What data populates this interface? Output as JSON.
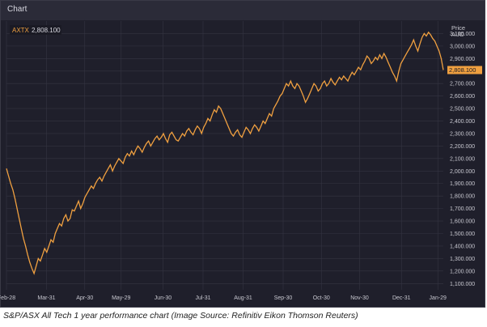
{
  "window": {
    "title": "Chart"
  },
  "legend": {
    "ticker": "AXTX",
    "value": "2,808.100"
  },
  "price_axis": {
    "label_line1": "Price",
    "label_line2": "AUD",
    "current_label": "2,808.100"
  },
  "caption": "S&P/ASX All Tech 1 year performance chart (Image Source: Refinitiv Eikon Thomson Reuters)",
  "colors": {
    "series": "#f0a040",
    "background": "#1f1f2b",
    "grid": "#343442",
    "text": "#c8c8d0"
  },
  "chart_data": {
    "type": "line",
    "title": "",
    "xlabel": "",
    "ylabel": "Price AUD",
    "ylim": [
      1050,
      3200
    ],
    "grid": true,
    "legend": "top-left",
    "x_ticks": [
      {
        "label": "Feb-28",
        "pos": 0.0
      },
      {
        "label": "Mar-31",
        "pos": 22.0
      },
      {
        "label": "Apr-30",
        "pos": 43.0
      },
      {
        "label": "May-29",
        "pos": 63.0
      },
      {
        "label": "Jun-30",
        "pos": 86.0
      },
      {
        "label": "Jul-31",
        "pos": 108.0
      },
      {
        "label": "Aug-31",
        "pos": 130.0
      },
      {
        "label": "Sep-30",
        "pos": 152.0
      },
      {
        "label": "Oct-30",
        "pos": 173.0
      },
      {
        "label": "Nov-30",
        "pos": 194.0
      },
      {
        "label": "Dec-31",
        "pos": 217.0
      },
      {
        "label": "Jan-29",
        "pos": 237.0
      }
    ],
    "y_ticks": [
      1100,
      1200,
      1300,
      1400,
      1500,
      1600,
      1700,
      1800,
      1900,
      2000,
      2100,
      2200,
      2300,
      2400,
      2500,
      2600,
      2700,
      2800,
      2900,
      3000,
      3100
    ],
    "y_tick_labels": [
      "1,100.000",
      "1,200.000",
      "1,300.000",
      "1,400.000",
      "1,500.000",
      "1,600.000",
      "1,700.000",
      "1,800.000",
      "1,900.000",
      "2,000.000",
      "2,100.000",
      "2,200.000",
      "2,300.000",
      "2,400.000",
      "2,500.000",
      "2,600.000",
      "2,700.000",
      "2,800.000",
      "2,900.000",
      "3,000.000",
      "3,100.000"
    ],
    "series": [
      {
        "values": [
          2020,
          1960,
          1900,
          1850,
          1780,
          1700,
          1620,
          1540,
          1460,
          1400,
          1330,
          1270,
          1220,
          1180,
          1240,
          1300,
          1280,
          1330,
          1380,
          1350,
          1400,
          1450,
          1430,
          1500,
          1540,
          1580,
          1560,
          1620,
          1650,
          1600,
          1620,
          1690,
          1680,
          1720,
          1760,
          1700,
          1740,
          1790,
          1820,
          1850,
          1880,
          1860,
          1900,
          1930,
          1950,
          1920,
          1960,
          1990,
          2020,
          2050,
          2000,
          2040,
          2070,
          2100,
          2080,
          2060,
          2110,
          2140,
          2120,
          2160,
          2130,
          2170,
          2200,
          2180,
          2150,
          2190,
          2220,
          2240,
          2200,
          2230,
          2260,
          2280,
          2250,
          2270,
          2300,
          2260,
          2230,
          2290,
          2310,
          2280,
          2250,
          2240,
          2270,
          2300,
          2280,
          2320,
          2340,
          2310,
          2290,
          2330,
          2360,
          2340,
          2300,
          2350,
          2380,
          2420,
          2400,
          2450,
          2490,
          2470,
          2520,
          2500,
          2460,
          2420,
          2380,
          2340,
          2300,
          2280,
          2310,
          2330,
          2290,
          2270,
          2310,
          2350,
          2330,
          2300,
          2340,
          2370,
          2350,
          2320,
          2360,
          2400,
          2380,
          2420,
          2460,
          2440,
          2500,
          2530,
          2560,
          2600,
          2620,
          2660,
          2700,
          2680,
          2720,
          2680,
          2660,
          2700,
          2680,
          2640,
          2600,
          2550,
          2580,
          2620,
          2660,
          2700,
          2680,
          2640,
          2660,
          2700,
          2720,
          2680,
          2700,
          2740,
          2710,
          2690,
          2720,
          2750,
          2730,
          2760,
          2740,
          2720,
          2760,
          2790,
          2770,
          2800,
          2830,
          2810,
          2850,
          2880,
          2920,
          2900,
          2860,
          2880,
          2910,
          2890,
          2930,
          2900,
          2940,
          2910,
          2870,
          2830,
          2790,
          2760,
          2720,
          2800,
          2860,
          2890,
          2920,
          2950,
          2980,
          3010,
          3050,
          3000,
          2960,
          3020,
          3070,
          3100,
          3080,
          3110,
          3090,
          3060,
          3040,
          3000,
          2960,
          2900,
          2808
        ]
      }
    ]
  }
}
